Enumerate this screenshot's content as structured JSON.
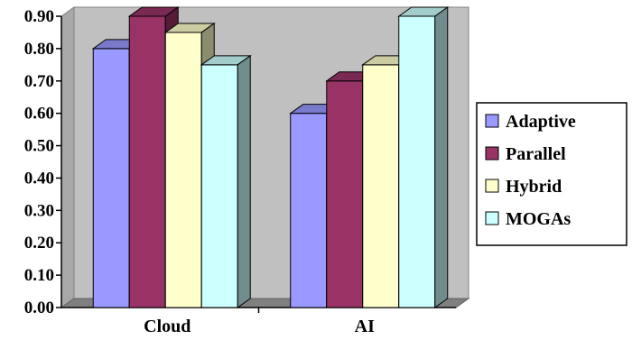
{
  "chart_data": {
    "type": "bar",
    "style": "3d-clustered-column",
    "categories": [
      "Cloud",
      "AI"
    ],
    "series": [
      {
        "name": "Adaptive",
        "values": [
          0.8,
          0.6
        ],
        "color": "#9999ff"
      },
      {
        "name": "Parallel",
        "values": [
          0.9,
          0.7
        ],
        "color": "#993366"
      },
      {
        "name": "Hybrid",
        "values": [
          0.85,
          0.75
        ],
        "color": "#ffffcc"
      },
      {
        "name": "MOGAs",
        "values": [
          0.75,
          0.9
        ],
        "color": "#ccffff"
      }
    ],
    "ylim": [
      0,
      0.9
    ],
    "yticks": [
      "0.00",
      "0.10",
      "0.20",
      "0.30",
      "0.40",
      "0.50",
      "0.60",
      "0.70",
      "0.80",
      "0.90"
    ],
    "title": "",
    "xlabel": "",
    "ylabel": "",
    "grid": false,
    "legend_position": "right",
    "wall_color": "#c0c0c0"
  }
}
